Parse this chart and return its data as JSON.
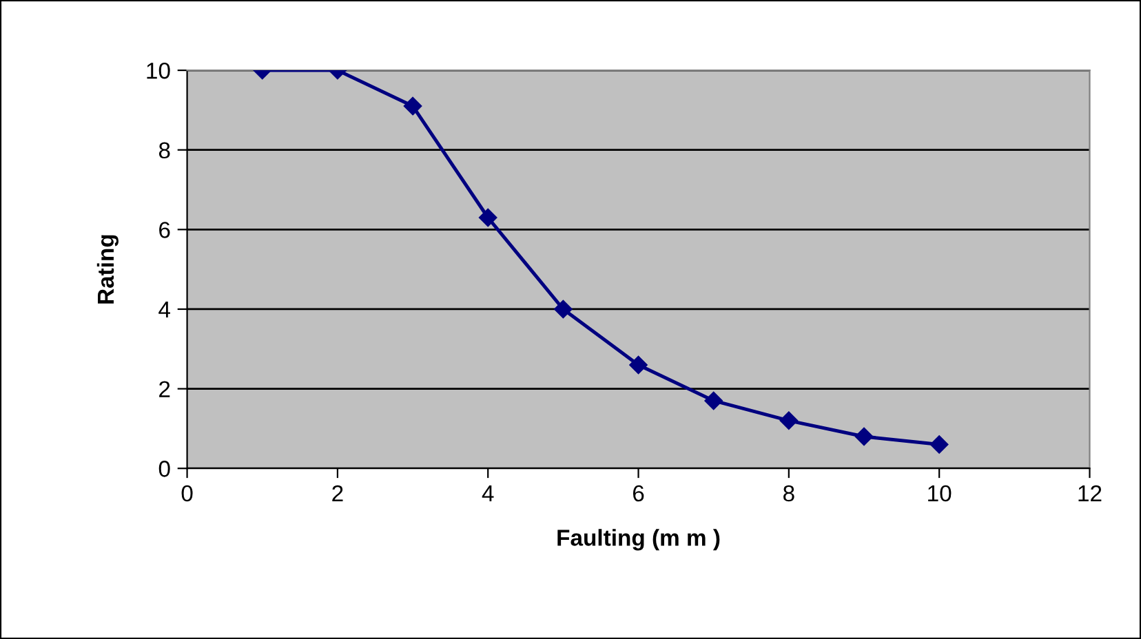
{
  "chart_data": {
    "type": "line",
    "xlabel": "Faulting (m m )",
    "ylabel": "Rating",
    "x": [
      1,
      2,
      3,
      4,
      5,
      6,
      7,
      8,
      9,
      10
    ],
    "series": [
      {
        "color": "#000080",
        "values": [
          10,
          10,
          9.1,
          6.3,
          4.0,
          2.6,
          1.7,
          1.2,
          0.8,
          0.6
        ]
      }
    ],
    "xlim": [
      0,
      12
    ],
    "xticks": [
      0,
      2,
      4,
      6,
      8,
      10,
      12
    ],
    "ylim": [
      0,
      10
    ],
    "yticks": [
      0,
      2,
      4,
      6,
      8,
      10
    ],
    "grid": "y",
    "marker": "diamond",
    "line_style": "solid"
  }
}
